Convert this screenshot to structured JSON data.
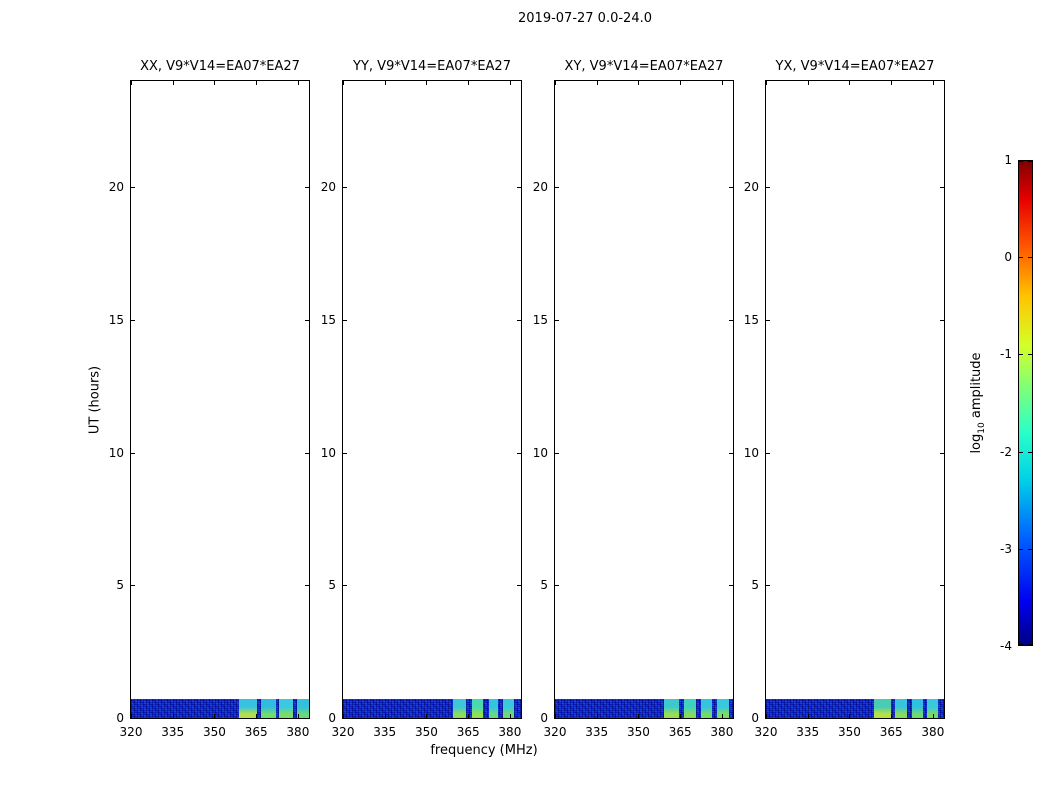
{
  "chart_data": {
    "type": "heatmap",
    "title": "2019-07-27 0.0-24.0",
    "xlabel": "frequency (MHz)",
    "ylabel": "UT (hours)",
    "x_range_mhz": [
      320,
      384
    ],
    "y_range_hours": [
      0,
      24
    ],
    "x_ticks": [
      320,
      335,
      350,
      365,
      380
    ],
    "y_ticks": [
      0,
      5,
      10,
      15,
      20
    ],
    "panels": [
      {
        "polarization": "XX",
        "title": "XX, V9*V14=EA07*EA27",
        "blocks": [
          [
            358.8,
            365.3,
            "#38c2e2",
            "#b2e04a"
          ],
          [
            366.9,
            372.0,
            "#30bce0",
            "#6fdc6e"
          ],
          [
            373.2,
            378.3,
            "#3ac8e2",
            "#7adc64"
          ],
          [
            379.5,
            384.0,
            "#32c0dc",
            "#6ad87c"
          ]
        ]
      },
      {
        "polarization": "YY",
        "title": "YY, V9*V14=EA07*EA27",
        "blocks": [
          [
            359.5,
            364.3,
            "#3cc6da",
            "#8cdc58"
          ],
          [
            366.3,
            370.5,
            "#48d8b2",
            "#90e052"
          ],
          [
            372.4,
            375.8,
            "#34c4e0",
            "#66d882"
          ],
          [
            377.6,
            381.4,
            "#38c8e0",
            "#70da72"
          ]
        ]
      },
      {
        "polarization": "XY",
        "title": "XY, V9*V14=EA07*EA27",
        "blocks": [
          [
            359.0,
            364.6,
            "#3cc8cc",
            "#9ade50"
          ],
          [
            366.2,
            370.8,
            "#3ed2c0",
            "#84dc5c"
          ],
          [
            372.4,
            376.6,
            "#34c4e0",
            "#74da6a"
          ],
          [
            378.2,
            382.4,
            "#38c8e0",
            "#7cdc62"
          ]
        ]
      },
      {
        "polarization": "YX",
        "title": "YX, V9*V14=EA07*EA27",
        "blocks": [
          [
            358.8,
            364.9,
            "#48ccb4",
            "#b6e146"
          ],
          [
            366.3,
            370.6,
            "#36c4de",
            "#86dc5a"
          ],
          [
            372.3,
            376.4,
            "#30bee2",
            "#6ed874"
          ],
          [
            378.0,
            381.8,
            "#38c8e0",
            "#78da66"
          ]
        ]
      }
    ],
    "band": {
      "ut_start": 0.0,
      "ut_end": 0.7,
      "noise_color": "#0a18bb"
    },
    "colorbar": {
      "label_pre": "log",
      "label_sub": "10",
      "label_post": " amplitude",
      "ticks": [
        1,
        0,
        -1,
        -2,
        -3,
        -4
      ],
      "range": [
        -4,
        1
      ],
      "colormap": "jet",
      "stops": [
        {
          "pos": 0.0,
          "color": "#000083"
        },
        {
          "pos": 0.09,
          "color": "#0000f0"
        },
        {
          "pos": 0.22,
          "color": "#0060ff"
        },
        {
          "pos": 0.34,
          "color": "#00d0e8"
        },
        {
          "pos": 0.44,
          "color": "#2affc8"
        },
        {
          "pos": 0.53,
          "color": "#7dff7a"
        },
        {
          "pos": 0.62,
          "color": "#d4ff28"
        },
        {
          "pos": 0.72,
          "color": "#ffc400"
        },
        {
          "pos": 0.82,
          "color": "#ff5a00"
        },
        {
          "pos": 0.92,
          "color": "#e80000"
        },
        {
          "pos": 1.0,
          "color": "#800000"
        }
      ]
    }
  }
}
